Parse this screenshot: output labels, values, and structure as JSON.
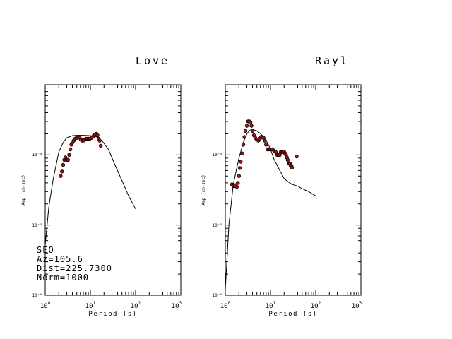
{
  "chart_data": [
    {
      "type": "scatter",
      "title": "Love",
      "xlabel": "Period (s)",
      "ylabel": "Amp (cm-sec)",
      "xscale": "log",
      "yscale": "log",
      "xlim": [
        1,
        1000
      ],
      "ylim": [
        1e-06,
        0.001
      ],
      "x_ticks": [
        {
          "base": "10",
          "exp": "0"
        },
        {
          "base": "10",
          "exp": "1"
        },
        {
          "base": "10",
          "exp": "2"
        },
        {
          "base": "10",
          "exp": "3"
        }
      ],
      "y_ticks": [
        {
          "value": 1e-06,
          "label": "10⁻⁶"
        },
        {
          "value": 1e-05,
          "label": "10⁻⁵"
        },
        {
          "value": 0.0001,
          "label": "10⁻⁴"
        }
      ],
      "annotations": [
        "SEO",
        "Az=105.6",
        "Dist=225.7300",
        "Norm=1000"
      ],
      "marker_color": "#a01818",
      "line_color": "#000000",
      "series": [
        {
          "kind": "line",
          "x": [
            1.0,
            1.2,
            1.5,
            2.0,
            2.5,
            3.0,
            4.0,
            5.0,
            7.0,
            10,
            14,
            18,
            25,
            35,
            50,
            70,
            100
          ],
          "y": [
            5.2e-06,
            1.8e-05,
            4.5e-05,
            0.00011,
            0.00015,
            0.000175,
            0.000188,
            0.00019,
            0.00019,
            0.000188,
            0.00018,
            0.00016,
            0.00012,
            7.2e-05,
            4.3e-05,
            2.6e-05,
            1.7e-05
          ]
        },
        {
          "kind": "points",
          "x": [
            2.2,
            2.35,
            2.5,
            2.65,
            2.8,
            3.0,
            3.2,
            3.4,
            3.6,
            3.8,
            4.0,
            4.3,
            4.6,
            5.0,
            5.4,
            5.8,
            6.2,
            6.6,
            7.0,
            7.5,
            8.0,
            8.6,
            9.2,
            9.8,
            10.5,
            11.2,
            12.0,
            12.8,
            13.6,
            14.4,
            15.2,
            16.0,
            17.0
          ],
          "y": [
            5e-05,
            5.8e-05,
            7.2e-05,
            8.5e-05,
            9.2e-05,
            8.5e-05,
            8.5e-05,
            0.0001,
            0.00012,
            0.00014,
            0.00015,
            0.00016,
            0.00017,
            0.000175,
            0.00018,
            0.000175,
            0.000165,
            0.00016,
            0.00016,
            0.000165,
            0.00017,
            0.00017,
            0.00017,
            0.00017,
            0.000175,
            0.00018,
            0.00019,
            0.000195,
            0.0002,
            0.00019,
            0.00017,
            0.00016,
            0.000135
          ]
        }
      ]
    },
    {
      "type": "scatter",
      "title": "Rayl",
      "xlabel": "Period (s)",
      "ylabel": "Amp (cm-sec)",
      "xscale": "log",
      "yscale": "log",
      "xlim": [
        1,
        1000
      ],
      "ylim": [
        1e-06,
        0.001
      ],
      "x_ticks": [
        {
          "base": "10",
          "exp": "0"
        },
        {
          "base": "10",
          "exp": "1"
        },
        {
          "base": "10",
          "exp": "2"
        },
        {
          "base": "10",
          "exp": "3"
        }
      ],
      "y_ticks": [
        {
          "value": 1e-06,
          "label": "10⁻⁶"
        },
        {
          "value": 1e-05,
          "label": "10⁻⁵"
        },
        {
          "value": 0.0001,
          "label": "10⁻⁴"
        }
      ],
      "marker_color": "#a01818",
      "line_color": "#000000",
      "series": [
        {
          "kind": "line",
          "x": [
            1.0,
            1.2,
            1.5,
            2.0,
            2.5,
            3.0,
            3.5,
            4.0,
            5.0,
            6.0,
            7.0,
            8.0,
            9.0,
            10,
            12,
            15,
            20,
            25,
            30,
            40,
            50,
            70,
            100
          ],
          "y": [
            1.2e-06,
            1e-05,
            3.8e-05,
            9e-05,
            0.00015,
            0.0002,
            0.000225,
            0.00023,
            0.00022,
            0.0002,
            0.00018,
            0.00016,
            0.00014,
            0.00012,
            8.6e-05,
            6.5e-05,
            4.6e-05,
            4.1e-05,
            3.8e-05,
            3.6e-05,
            3.3e-05,
            3e-05,
            2.6e-05
          ]
        },
        {
          "kind": "points",
          "x": [
            1.4,
            1.5,
            1.6,
            1.7,
            1.8,
            1.9,
            2.0,
            2.1,
            2.2,
            2.35,
            2.5,
            2.65,
            2.8,
            3.0,
            3.2,
            3.4,
            3.6,
            3.8,
            4.0,
            4.3,
            4.6,
            5.0,
            5.4,
            5.8,
            6.2,
            6.6,
            7.0,
            7.5,
            8.0,
            8.6,
            9.2,
            10,
            11,
            12,
            13,
            14,
            15,
            16,
            17,
            18,
            19,
            20,
            21,
            22,
            23,
            24,
            25,
            26,
            27,
            28,
            29,
            30,
            38
          ],
          "y": [
            3.8e-05,
            3.6e-05,
            3.6e-05,
            3.7e-05,
            3.5e-05,
            4e-05,
            5e-05,
            6.5e-05,
            8e-05,
            0.000105,
            0.00014,
            0.00018,
            0.00022,
            0.00026,
            0.0003,
            0.0003,
            0.00029,
            0.00026,
            0.00022,
            0.00019,
            0.000175,
            0.000165,
            0.00016,
            0.00017,
            0.00018,
            0.00018,
            0.000175,
            0.00016,
            0.00014,
            0.00012,
            0.00012,
            0.00012,
            0.00012,
            0.000115,
            0.00011,
            0.0001,
            0.0001,
            0.0001,
            0.00011,
            0.00011,
            0.00011,
            0.00011,
            0.000105,
            0.0001,
            9.2e-05,
            8.5e-05,
            8e-05,
            7.5e-05,
            7.5e-05,
            7e-05,
            7e-05,
            6.6e-05,
            9.5e-05
          ]
        }
      ]
    }
  ]
}
